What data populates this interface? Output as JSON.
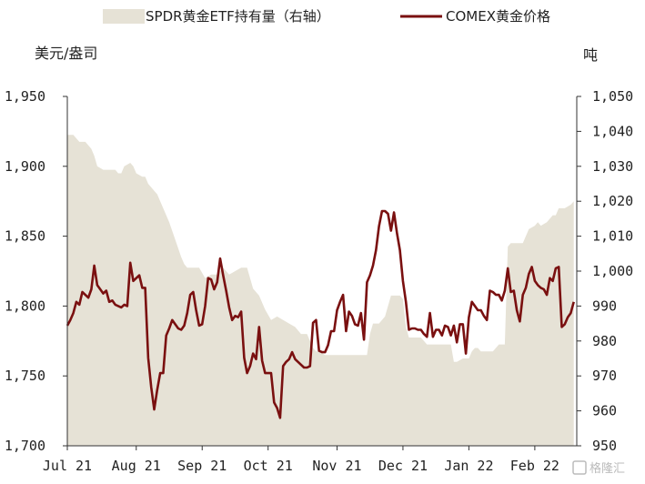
{
  "chart_data": {
    "type": "line",
    "title": "",
    "legend": {
      "placement": "top",
      "area_label": "SPDR黄金ETF持有量（右轴）",
      "line_label": "COMEX黄金价格"
    },
    "left_axis": {
      "title": "美元/盎司",
      "ylim": [
        1700,
        1950
      ],
      "ticks": [
        1700,
        1750,
        1800,
        1850,
        1900,
        1950
      ],
      "tick_labels": [
        "1,700",
        "1,750",
        "1,800",
        "1,850",
        "1,900",
        "1,950"
      ]
    },
    "right_axis": {
      "title": "吨",
      "ylim": [
        950,
        1050
      ],
      "ticks": [
        950,
        960,
        970,
        980,
        990,
        1000,
        1010,
        1020,
        1030,
        1040,
        1050
      ],
      "tick_labels": [
        "950",
        "960",
        "970",
        "980",
        "990",
        "1,000",
        "1,010",
        "1,020",
        "1,030",
        "1,040",
        "1,050"
      ]
    },
    "x_axis": {
      "ticks": [
        0,
        23,
        45,
        67,
        90,
        112,
        134,
        156
      ],
      "tick_labels": [
        "Jul 21",
        "Aug 21",
        "Sep 21",
        "Oct 21",
        "Nov 21",
        "Dec 21",
        "Jan 22",
        "Feb 22"
      ],
      "xlim": [
        0,
        170
      ]
    },
    "series": [
      {
        "name": "SPDR黄金ETF持有量（右轴）",
        "type": "area",
        "axis": "right",
        "color": "#e6e2d6",
        "points": [
          [
            0,
            1039
          ],
          [
            2,
            1039
          ],
          [
            4,
            1037
          ],
          [
            6,
            1037
          ],
          [
            7,
            1036
          ],
          [
            8,
            1035
          ],
          [
            9,
            1033
          ],
          [
            10,
            1030
          ],
          [
            12,
            1029
          ],
          [
            14,
            1029
          ],
          [
            16,
            1029
          ],
          [
            17,
            1028
          ],
          [
            18,
            1028
          ],
          [
            19,
            1030
          ],
          [
            21,
            1031
          ],
          [
            22,
            1030
          ],
          [
            23,
            1028
          ],
          [
            25,
            1027
          ],
          [
            26,
            1027
          ],
          [
            27,
            1025
          ],
          [
            29,
            1023
          ],
          [
            30,
            1022
          ],
          [
            31,
            1020
          ],
          [
            32,
            1018
          ],
          [
            34,
            1014
          ],
          [
            36,
            1009
          ],
          [
            38,
            1004
          ],
          [
            39,
            1002
          ],
          [
            40,
            1001
          ],
          [
            42,
            1001
          ],
          [
            44,
            1001
          ],
          [
            46,
            998
          ],
          [
            48,
            999
          ],
          [
            50,
            999
          ],
          [
            52,
            1001
          ],
          [
            54,
            999
          ],
          [
            56,
            1000
          ],
          [
            58,
            1001
          ],
          [
            60,
            1001
          ],
          [
            61,
            998
          ],
          [
            62,
            995
          ],
          [
            64,
            993
          ],
          [
            66,
            989
          ],
          [
            68,
            986
          ],
          [
            70,
            987
          ],
          [
            72,
            986
          ],
          [
            74,
            985
          ],
          [
            76,
            984
          ],
          [
            78,
            982
          ],
          [
            80,
            982
          ],
          [
            82,
            978
          ],
          [
            83,
            977
          ],
          [
            84,
            977
          ],
          [
            86,
            976
          ],
          [
            88,
            976
          ],
          [
            90,
            976
          ],
          [
            92,
            976
          ],
          [
            94,
            976
          ],
          [
            96,
            976
          ],
          [
            98,
            976
          ],
          [
            100,
            976
          ],
          [
            101,
            982
          ],
          [
            102,
            985
          ],
          [
            103,
            985
          ],
          [
            104,
            985
          ],
          [
            105,
            986
          ],
          [
            106,
            987
          ],
          [
            108,
            993
          ],
          [
            110,
            993
          ],
          [
            111,
            993
          ],
          [
            112,
            992
          ],
          [
            113,
            984
          ],
          [
            114,
            981
          ],
          [
            116,
            981
          ],
          [
            118,
            981
          ],
          [
            119,
            980
          ],
          [
            120,
            979
          ],
          [
            122,
            979
          ],
          [
            124,
            979
          ],
          [
            126,
            979
          ],
          [
            128,
            979
          ],
          [
            129,
            974
          ],
          [
            130,
            974
          ],
          [
            132,
            975
          ],
          [
            134,
            975
          ],
          [
            135,
            977
          ],
          [
            136,
            978
          ],
          [
            137,
            978
          ],
          [
            138,
            977
          ],
          [
            139,
            977
          ],
          [
            140,
            977
          ],
          [
            142,
            977
          ],
          [
            144,
            979
          ],
          [
            146,
            979
          ],
          [
            147,
            1007
          ],
          [
            148,
            1008
          ],
          [
            149,
            1008
          ],
          [
            150,
            1008
          ],
          [
            152,
            1008
          ],
          [
            153,
            1010
          ],
          [
            154,
            1012
          ],
          [
            156,
            1013
          ],
          [
            157,
            1014
          ],
          [
            158,
            1013
          ],
          [
            160,
            1014
          ],
          [
            162,
            1016
          ],
          [
            163,
            1016
          ],
          [
            164,
            1018
          ],
          [
            166,
            1018
          ],
          [
            168,
            1019
          ],
          [
            169,
            1020
          ]
        ]
      },
      {
        "name": "COMEX黄金价格",
        "type": "line",
        "axis": "left",
        "color": "#7a1010",
        "points": [
          [
            0,
            1786
          ],
          [
            1,
            1790
          ],
          [
            2,
            1795
          ],
          [
            3,
            1803
          ],
          [
            4,
            1801
          ],
          [
            5,
            1810
          ],
          [
            6,
            1808
          ],
          [
            7,
            1806
          ],
          [
            8,
            1812
          ],
          [
            9,
            1829
          ],
          [
            10,
            1815
          ],
          [
            11,
            1812
          ],
          [
            12,
            1809
          ],
          [
            13,
            1811
          ],
          [
            14,
            1803
          ],
          [
            15,
            1804
          ],
          [
            16,
            1801
          ],
          [
            17,
            1800
          ],
          [
            18,
            1799
          ],
          [
            19,
            1801
          ],
          [
            20,
            1800
          ],
          [
            21,
            1831
          ],
          [
            22,
            1818
          ],
          [
            23,
            1820
          ],
          [
            24,
            1822
          ],
          [
            25,
            1813
          ],
          [
            26,
            1813
          ],
          [
            27,
            1763
          ],
          [
            28,
            1742
          ],
          [
            29,
            1726
          ],
          [
            30,
            1740
          ],
          [
            31,
            1752
          ],
          [
            32,
            1752
          ],
          [
            33,
            1779
          ],
          [
            34,
            1784
          ],
          [
            35,
            1790
          ],
          [
            36,
            1787
          ],
          [
            37,
            1784
          ],
          [
            38,
            1783
          ],
          [
            39,
            1786
          ],
          [
            40,
            1795
          ],
          [
            41,
            1808
          ],
          [
            42,
            1810
          ],
          [
            43,
            1797
          ],
          [
            44,
            1786
          ],
          [
            45,
            1787
          ],
          [
            46,
            1800
          ],
          [
            47,
            1820
          ],
          [
            48,
            1819
          ],
          [
            49,
            1812
          ],
          [
            50,
            1817
          ],
          [
            51,
            1834
          ],
          [
            52,
            1822
          ],
          [
            53,
            1811
          ],
          [
            54,
            1799
          ],
          [
            55,
            1790
          ],
          [
            56,
            1793
          ],
          [
            57,
            1792
          ],
          [
            58,
            1796
          ],
          [
            59,
            1763
          ],
          [
            60,
            1752
          ],
          [
            61,
            1757
          ],
          [
            62,
            1766
          ],
          [
            63,
            1762
          ],
          [
            64,
            1785
          ],
          [
            65,
            1761
          ],
          [
            66,
            1752
          ],
          [
            67,
            1752
          ],
          [
            68,
            1752
          ],
          [
            69,
            1731
          ],
          [
            70,
            1727
          ],
          [
            71,
            1720
          ],
          [
            72,
            1757
          ],
          [
            73,
            1760
          ],
          [
            74,
            1762
          ],
          [
            75,
            1767
          ],
          [
            76,
            1762
          ],
          [
            77,
            1760
          ],
          [
            78,
            1758
          ],
          [
            79,
            1756
          ],
          [
            80,
            1756
          ],
          [
            81,
            1757
          ],
          [
            82,
            1788
          ],
          [
            83,
            1790
          ],
          [
            84,
            1768
          ],
          [
            85,
            1767
          ],
          [
            86,
            1767
          ],
          [
            87,
            1772
          ],
          [
            88,
            1782
          ],
          [
            89,
            1782
          ],
          [
            90,
            1797
          ],
          [
            91,
            1803
          ],
          [
            92,
            1808
          ],
          [
            93,
            1782
          ],
          [
            94,
            1796
          ],
          [
            95,
            1793
          ],
          [
            96,
            1787
          ],
          [
            97,
            1786
          ],
          [
            98,
            1795
          ],
          [
            99,
            1776
          ],
          [
            100,
            1817
          ],
          [
            101,
            1822
          ],
          [
            102,
            1829
          ],
          [
            103,
            1840
          ],
          [
            104,
            1857
          ],
          [
            105,
            1868
          ],
          [
            106,
            1868
          ],
          [
            107,
            1866
          ],
          [
            108,
            1854
          ],
          [
            109,
            1867
          ],
          [
            110,
            1852
          ],
          [
            111,
            1840
          ],
          [
            112,
            1818
          ],
          [
            113,
            1803
          ],
          [
            114,
            1783
          ],
          [
            115,
            1784
          ],
          [
            116,
            1784
          ],
          [
            117,
            1783
          ],
          [
            118,
            1783
          ],
          [
            119,
            1780
          ],
          [
            120,
            1778
          ],
          [
            121,
            1795
          ],
          [
            122,
            1778
          ],
          [
            123,
            1783
          ],
          [
            124,
            1783
          ],
          [
            125,
            1779
          ],
          [
            126,
            1786
          ],
          [
            127,
            1785
          ],
          [
            128,
            1779
          ],
          [
            129,
            1786
          ],
          [
            130,
            1774
          ],
          [
            131,
            1787
          ],
          [
            132,
            1787
          ],
          [
            133,
            1766
          ],
          [
            134,
            1792
          ],
          [
            135,
            1803
          ],
          [
            136,
            1800
          ],
          [
            137,
            1797
          ],
          [
            138,
            1797
          ],
          [
            139,
            1793
          ],
          [
            140,
            1790
          ],
          [
            141,
            1811
          ],
          [
            142,
            1810
          ],
          [
            143,
            1808
          ],
          [
            144,
            1808
          ],
          [
            145,
            1804
          ],
          [
            146,
            1811
          ],
          [
            147,
            1827
          ],
          [
            148,
            1810
          ],
          [
            149,
            1811
          ],
          [
            150,
            1797
          ],
          [
            151,
            1789
          ],
          [
            152,
            1808
          ],
          [
            153,
            1813
          ],
          [
            154,
            1823
          ],
          [
            155,
            1828
          ],
          [
            156,
            1818
          ],
          [
            157,
            1815
          ],
          [
            158,
            1813
          ],
          [
            159,
            1812
          ],
          [
            160,
            1808
          ],
          [
            161,
            1820
          ],
          [
            162,
            1818
          ],
          [
            163,
            1827
          ],
          [
            164,
            1828
          ],
          [
            165,
            1785
          ],
          [
            166,
            1787
          ],
          [
            167,
            1792
          ],
          [
            168,
            1795
          ],
          [
            169,
            1803
          ]
        ]
      }
    ],
    "grid": false
  },
  "watermark": "格隆汇"
}
